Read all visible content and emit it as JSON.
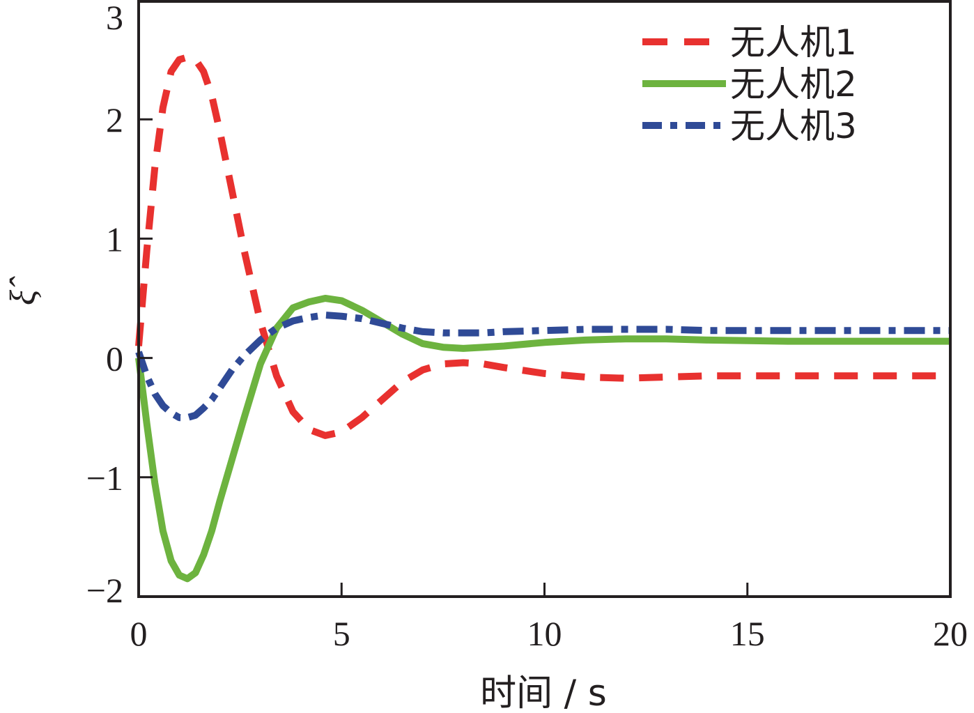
{
  "chart_data": {
    "type": "line",
    "xlabel": "时间 / s",
    "ylabel": "ξ̂",
    "xlim": [
      0,
      20
    ],
    "ylim": [
      -2,
      3
    ],
    "xticks": [
      "0",
      "5",
      "10",
      "15",
      "20"
    ],
    "yticks": [
      "−2",
      "−1",
      "0",
      "1",
      "2",
      "3"
    ],
    "grid": false,
    "legend_position": "top-right",
    "series": [
      {
        "name": "无人机1",
        "color": "#e8312f",
        "dash": "dashed",
        "x": [
          0,
          0.2,
          0.4,
          0.6,
          0.8,
          1.0,
          1.2,
          1.4,
          1.6,
          1.8,
          2.0,
          2.3,
          2.6,
          3.0,
          3.4,
          3.8,
          4.2,
          4.6,
          5.0,
          5.5,
          6.0,
          6.5,
          7.0,
          7.5,
          8.0,
          8.5,
          9.0,
          10.0,
          11.0,
          12.0,
          13.0,
          14.0,
          16.0,
          18.0,
          20.0
        ],
        "y": [
          0.1,
          0.9,
          1.6,
          2.1,
          2.4,
          2.5,
          2.52,
          2.5,
          2.4,
          2.2,
          1.9,
          1.4,
          0.9,
          0.3,
          -0.15,
          -0.45,
          -0.6,
          -0.65,
          -0.62,
          -0.5,
          -0.35,
          -0.2,
          -0.1,
          -0.05,
          -0.04,
          -0.05,
          -0.08,
          -0.13,
          -0.16,
          -0.17,
          -0.16,
          -0.15,
          -0.15,
          -0.15,
          -0.15
        ]
      },
      {
        "name": "无人机2",
        "color": "#6db33f",
        "dash": "solid",
        "x": [
          0,
          0.2,
          0.4,
          0.6,
          0.8,
          1.0,
          1.2,
          1.4,
          1.6,
          1.8,
          2.0,
          2.3,
          2.6,
          3.0,
          3.4,
          3.8,
          4.2,
          4.6,
          5.0,
          5.5,
          6.0,
          6.5,
          7.0,
          7.5,
          8.0,
          8.5,
          9.0,
          10.0,
          11.0,
          12.0,
          13.0,
          14.0,
          16.0,
          18.0,
          20.0
        ],
        "y": [
          0.0,
          -0.55,
          -1.05,
          -1.45,
          -1.7,
          -1.82,
          -1.85,
          -1.8,
          -1.65,
          -1.45,
          -1.2,
          -0.85,
          -0.5,
          -0.05,
          0.25,
          0.42,
          0.47,
          0.5,
          0.48,
          0.4,
          0.3,
          0.2,
          0.12,
          0.09,
          0.08,
          0.09,
          0.1,
          0.13,
          0.15,
          0.16,
          0.16,
          0.15,
          0.14,
          0.14,
          0.14
        ]
      },
      {
        "name": "无人机3",
        "color": "#2f4a96",
        "dash": "dashdot",
        "x": [
          0,
          0.2,
          0.4,
          0.6,
          0.8,
          1.0,
          1.2,
          1.4,
          1.6,
          1.8,
          2.0,
          2.3,
          2.6,
          3.0,
          3.4,
          3.8,
          4.2,
          4.6,
          5.0,
          5.5,
          6.0,
          6.5,
          7.0,
          7.5,
          8.0,
          8.5,
          9.0,
          10.0,
          11.0,
          12.0,
          13.0,
          14.0,
          16.0,
          18.0,
          20.0
        ],
        "y": [
          0.05,
          -0.15,
          -0.3,
          -0.4,
          -0.46,
          -0.5,
          -0.5,
          -0.48,
          -0.42,
          -0.35,
          -0.25,
          -0.1,
          0.02,
          0.15,
          0.25,
          0.31,
          0.34,
          0.36,
          0.35,
          0.33,
          0.29,
          0.25,
          0.22,
          0.21,
          0.21,
          0.21,
          0.22,
          0.23,
          0.24,
          0.24,
          0.24,
          0.23,
          0.23,
          0.23,
          0.23
        ]
      }
    ]
  }
}
